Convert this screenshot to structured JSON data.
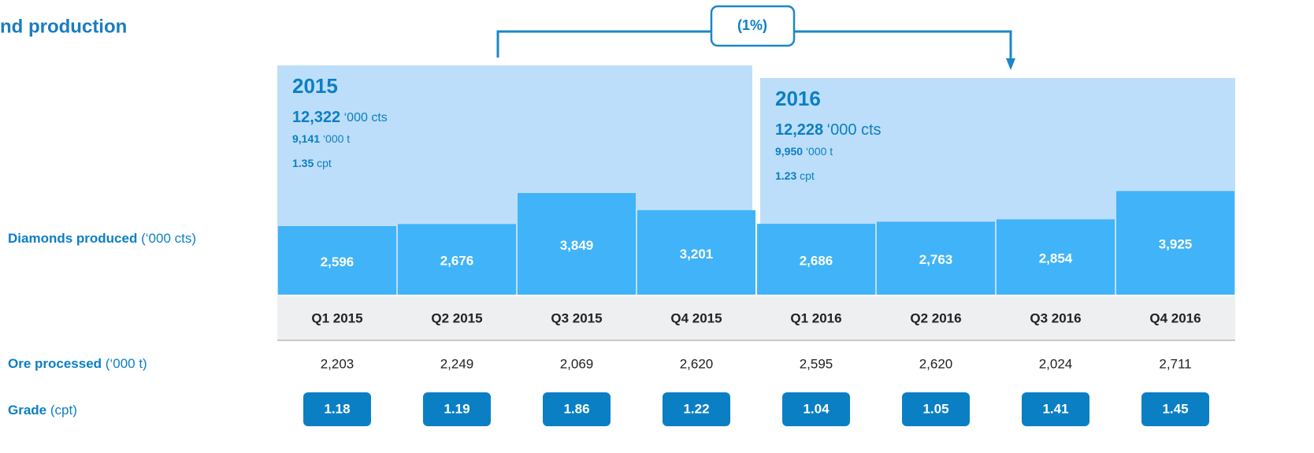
{
  "chart_data": {
    "type": "bar",
    "title": "nd production",
    "change": "(1%)",
    "color": "#41b3f8",
    "categories": [
      "Q1 2015",
      "Q2 2015",
      "Q3 2015",
      "Q4 2015",
      "Q1 2016",
      "Q2 2016",
      "Q3 2016",
      "Q4 2016"
    ],
    "values": [
      2596,
      2676,
      3849,
      3201,
      2686,
      2763,
      2854,
      3925
    ],
    "value_labels": [
      "2,596",
      "2,676",
      "3,849",
      "3,201",
      "2,686",
      "2,763",
      "2,854",
      "3,925"
    ],
    "rows": [
      {
        "name": "Diamonds produced",
        "unit": "(‘000 cts)"
      },
      {
        "name": "Ore processed",
        "unit": "(‘000 t)"
      },
      {
        "name": "Grade",
        "unit": "(cpt)"
      }
    ],
    "ore_processed": [
      2203,
      2249,
      2069,
      2620,
      2595,
      2620,
      2024,
      2711
    ],
    "ore_processed_labels": [
      "2,203",
      "2,249",
      "2,069",
      "2,620",
      "2,595",
      "2,620",
      "2,024",
      "2,711"
    ],
    "grade": [
      1.18,
      1.19,
      1.86,
      1.22,
      1.04,
      1.05,
      1.41,
      1.45
    ],
    "years": [
      {
        "year": "2015",
        "carats": "12,322",
        "carats_unit": "‘000 cts",
        "tonnes": "9,141",
        "tonnes_unit": "‘000 t",
        "grade": "1.35",
        "grade_unit": "cpt"
      },
      {
        "year": "2016",
        "carats": "12,228",
        "carats_unit": "‘000 cts",
        "tonnes": "9,950",
        "tonnes_unit": "‘000 t",
        "grade": "1.23",
        "grade_unit": "cpt"
      }
    ]
  }
}
